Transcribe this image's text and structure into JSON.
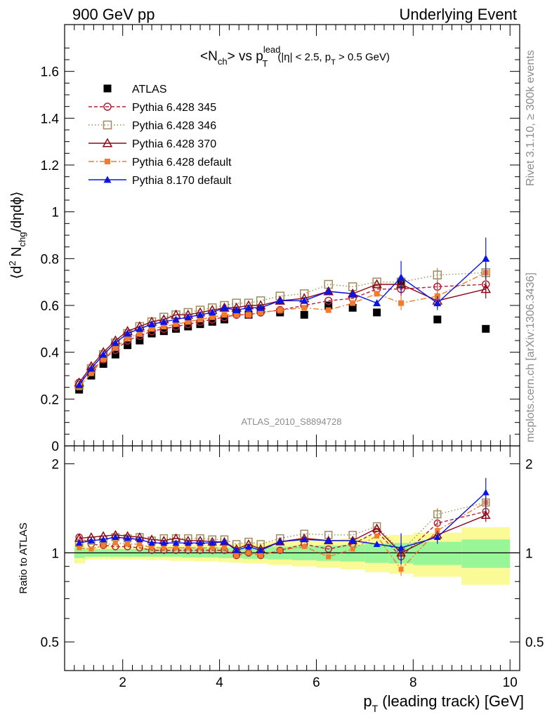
{
  "header": {
    "left": "900 GeV pp",
    "right": "Underlying Event"
  },
  "side_labels": {
    "rivet": "Rivet 3.1.10, ≥ 300k events",
    "mcplots": "mcplots.cern.ch [arXiv:1306.3436]"
  },
  "watermark": "ATLAS_2010_S8894728",
  "colors": {
    "atlas": "#000000",
    "p345": "#b22234",
    "p346": "#a08c5a",
    "p370": "#8b0a1a",
    "p6def": "#f07d2d",
    "p8def": "#0a14e6",
    "band_inner": "#98f598",
    "band_outer": "#fafa96"
  },
  "chart_data": [
    {
      "type": "scatter",
      "title": "<N_ch> vs p_T^lead (|η| < 2.5, p_T > 0.5 GeV)",
      "ylabel": "⟨d² N_chg/dηdϕ⟩",
      "xlabel": "p_T (leading track) [GeV]",
      "xlim": [
        0.8,
        10.2
      ],
      "ylim": [
        0,
        1.8
      ],
      "yticks": [
        "0",
        "0.2",
        "0.4",
        "0.6",
        "0.8",
        "1",
        "1.2",
        "1.4",
        "1.6"
      ],
      "legend_position": "top-left",
      "x": [
        1.1,
        1.35,
        1.6,
        1.85,
        2.1,
        2.35,
        2.6,
        2.85,
        3.1,
        3.35,
        3.6,
        3.85,
        4.1,
        4.35,
        4.6,
        4.85,
        5.25,
        5.75,
        6.25,
        6.75,
        7.25,
        7.75,
        8.5,
        9.5
      ],
      "series": [
        {
          "name": "ATLAS",
          "marker": "filled-square",
          "values": [
            0.24,
            0.3,
            0.35,
            0.39,
            0.43,
            0.45,
            0.48,
            0.49,
            0.5,
            0.51,
            0.52,
            0.53,
            0.54,
            0.57,
            0.56,
            0.58,
            0.57,
            0.56,
            0.6,
            0.59,
            0.57,
            0.69,
            0.54,
            0.5
          ]
        },
        {
          "name": "Pythia 6.428 345",
          "marker": "open-circle",
          "values": [
            0.27,
            0.32,
            0.37,
            0.41,
            0.45,
            0.47,
            0.49,
            0.5,
            0.51,
            0.52,
            0.53,
            0.54,
            0.55,
            0.56,
            0.56,
            0.57,
            0.58,
            0.6,
            0.62,
            0.63,
            0.67,
            0.67,
            0.68,
            0.69
          ]
        },
        {
          "name": "Pythia 6.428 346",
          "marker": "open-square",
          "values": [
            0.26,
            0.33,
            0.39,
            0.44,
            0.48,
            0.51,
            0.53,
            0.55,
            0.56,
            0.57,
            0.58,
            0.59,
            0.6,
            0.61,
            0.61,
            0.62,
            0.64,
            0.65,
            0.69,
            0.68,
            0.7,
            0.7,
            0.73,
            0.74
          ]
        },
        {
          "name": "Pythia 6.428 370",
          "marker": "open-triangle",
          "values": [
            0.27,
            0.34,
            0.4,
            0.45,
            0.49,
            0.51,
            0.53,
            0.54,
            0.56,
            0.56,
            0.57,
            0.58,
            0.59,
            0.59,
            0.6,
            0.6,
            0.62,
            0.63,
            0.66,
            0.65,
            0.69,
            0.69,
            0.62,
            0.67
          ]
        },
        {
          "name": "Pythia 6.428 default",
          "marker": "filled-square-small",
          "values": [
            0.25,
            0.31,
            0.37,
            0.42,
            0.46,
            0.48,
            0.5,
            0.51,
            0.52,
            0.53,
            0.54,
            0.55,
            0.56,
            0.56,
            0.56,
            0.57,
            0.58,
            0.59,
            0.58,
            0.61,
            0.65,
            0.61,
            0.64,
            0.74
          ]
        },
        {
          "name": "Pythia 8.170 default",
          "marker": "filled-triangle",
          "values": [
            0.26,
            0.33,
            0.39,
            0.44,
            0.48,
            0.5,
            0.52,
            0.53,
            0.54,
            0.55,
            0.56,
            0.57,
            0.59,
            0.58,
            0.59,
            0.59,
            0.62,
            0.62,
            0.66,
            0.65,
            0.61,
            0.72,
            0.61,
            0.8
          ]
        }
      ]
    },
    {
      "type": "scatter",
      "ylabel": "Ratio to ATLAS",
      "xlabel": "p_T (leading track) [GeV]",
      "xlim": [
        0.8,
        10.2
      ],
      "ylim": [
        0.4,
        2.3
      ],
      "log_y": true,
      "yticks": [
        "0.5",
        "1",
        "2"
      ],
      "xticks": [
        "2",
        "4",
        "6",
        "8",
        "10"
      ],
      "x": [
        1.1,
        1.35,
        1.6,
        1.85,
        2.1,
        2.35,
        2.6,
        2.85,
        3.1,
        3.35,
        3.6,
        3.85,
        4.1,
        4.35,
        4.6,
        4.85,
        5.25,
        5.75,
        6.25,
        6.75,
        7.25,
        7.75,
        8.5,
        9.5
      ],
      "series": [
        {
          "name": "Pythia 6.428 345",
          "values": [
            1.13,
            1.07,
            1.06,
            1.05,
            1.05,
            1.04,
            1.02,
            1.02,
            1.02,
            1.02,
            1.02,
            1.02,
            1.02,
            0.98,
            1.0,
            0.98,
            1.02,
            1.07,
            1.03,
            1.07,
            1.18,
            0.97,
            1.26,
            1.38
          ]
        },
        {
          "name": "Pythia 6.428 346",
          "values": [
            1.08,
            1.1,
            1.11,
            1.13,
            1.12,
            1.13,
            1.1,
            1.12,
            1.12,
            1.12,
            1.12,
            1.11,
            1.11,
            1.07,
            1.09,
            1.07,
            1.12,
            1.16,
            1.15,
            1.15,
            1.23,
            1.01,
            1.35,
            1.48
          ]
        },
        {
          "name": "Pythia 6.428 370",
          "values": [
            1.12,
            1.13,
            1.14,
            1.15,
            1.14,
            1.13,
            1.11,
            1.1,
            1.12,
            1.1,
            1.1,
            1.09,
            1.09,
            1.03,
            1.07,
            1.03,
            1.09,
            1.12,
            1.1,
            1.1,
            1.21,
            1.0,
            1.15,
            1.34
          ]
        },
        {
          "name": "Pythia 6.428 default",
          "values": [
            1.04,
            1.03,
            1.06,
            1.08,
            1.07,
            1.07,
            1.04,
            1.04,
            1.04,
            1.04,
            1.04,
            1.04,
            1.04,
            0.98,
            1.0,
            0.98,
            1.02,
            1.05,
            0.97,
            1.03,
            1.14,
            0.88,
            1.19,
            1.48
          ]
        },
        {
          "name": "Pythia 8.170 default",
          "values": [
            1.08,
            1.1,
            1.11,
            1.13,
            1.12,
            1.11,
            1.08,
            1.08,
            1.08,
            1.08,
            1.08,
            1.08,
            1.09,
            1.02,
            1.05,
            1.02,
            1.09,
            1.11,
            1.1,
            1.1,
            1.07,
            1.04,
            1.13,
            1.6
          ]
        }
      ]
    }
  ]
}
